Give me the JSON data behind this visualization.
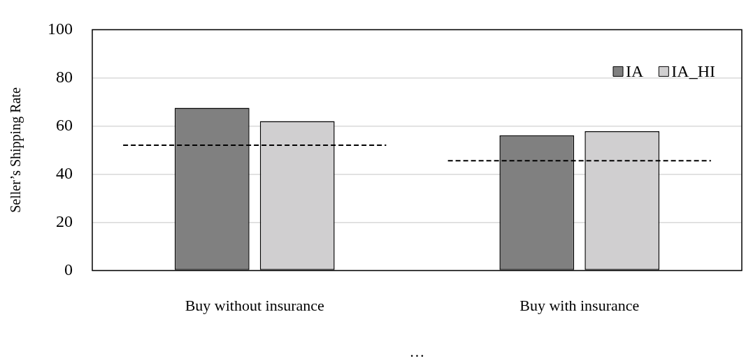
{
  "chart_data": {
    "type": "bar",
    "ylabel": "Seller’s Shipping Rate",
    "categories": [
      "Buy without insurance",
      "Buy with insurance"
    ],
    "series": [
      {
        "name": "IA",
        "color": "#808080",
        "values": [
          67.5,
          56.1
        ]
      },
      {
        "name": "IA_HI",
        "color": "#d0cfd0",
        "values": [
          62,
          57.8
        ]
      }
    ],
    "ref_lines": [
      {
        "axis": "y",
        "value": 52,
        "color": "#000000",
        "line_style": "dashed"
      },
      {
        "axis": "y",
        "value": 45.6,
        "color": "#000000",
        "line_style": "dashed"
      }
    ],
    "ylim": [
      0,
      100
    ],
    "yticks": [
      0,
      20,
      40,
      60,
      80,
      100
    ],
    "grid": "y",
    "legend": "top right",
    "annotations": [
      "…"
    ]
  }
}
